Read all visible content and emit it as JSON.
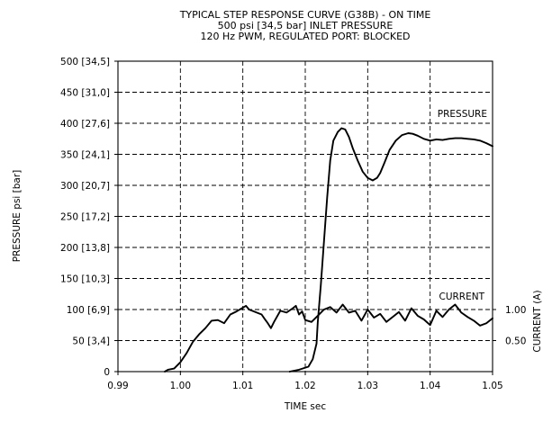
{
  "chart_data": {
    "type": "line",
    "title_lines": [
      "TYPICAL STEP RESPONSE CURVE (G38B) - ON TIME",
      "500 psi [34,5 bar] INLET PRESSURE",
      "120 Hz PWM, REGULATED PORT: BLOCKED"
    ],
    "xlabel": "TIME sec",
    "ylabel": "PRESSURE psi [bar]",
    "y2label": "CURRENT (A)",
    "xlim": [
      0.99,
      1.05
    ],
    "ylim": [
      0,
      500
    ],
    "x_ticks": [
      0.99,
      1.0,
      1.01,
      1.02,
      1.03,
      1.04,
      1.05
    ],
    "x_tick_labels": [
      "0.99",
      "1.00",
      "1.01",
      "1.02",
      "1.03",
      "1.04",
      "1.05"
    ],
    "y_ticks": [
      0,
      50,
      100,
      150,
      200,
      250,
      300,
      350,
      400,
      450,
      500
    ],
    "y_tick_labels": [
      "0",
      "50 [3,4]",
      "100 [6,9]",
      "150 [10,3]",
      "200 [13,8]",
      "250 [17,2]",
      "300 [20,7]",
      "350 [24,1]",
      "400 [27,6]",
      "450 [31,0]",
      "500 [34,5]"
    ],
    "y2_ticks": [
      {
        "label": "0.50",
        "value": 0.5,
        "y_equiv": 50
      },
      {
        "label": "1.00",
        "value": 1.0,
        "y_equiv": 100
      }
    ],
    "grid": true,
    "series": [
      {
        "name": "PRESSURE",
        "x": [
          1.0175,
          1.019,
          1.0205,
          1.0212,
          1.0218,
          1.022,
          1.0225,
          1.023,
          1.0235,
          1.024,
          1.0245,
          1.0252,
          1.0258,
          1.0264,
          1.027,
          1.0276,
          1.0284,
          1.0292,
          1.03,
          1.0308,
          1.0315,
          1.032,
          1.0327,
          1.0335,
          1.0345,
          1.0355,
          1.0365,
          1.0372,
          1.038,
          1.039,
          1.04,
          1.041,
          1.042,
          1.043,
          1.044,
          1.045,
          1.046,
          1.047,
          1.048,
          1.049,
          1.05
        ],
        "y": [
          0,
          3,
          8,
          20,
          45,
          80,
          140,
          210,
          280,
          340,
          372,
          386,
          392,
          390,
          378,
          360,
          340,
          322,
          312,
          308,
          312,
          320,
          337,
          357,
          372,
          381,
          384,
          383,
          380,
          375,
          372,
          374,
          373,
          375,
          376,
          376,
          375,
          374,
          372,
          368,
          363
        ]
      },
      {
        "name": "CURRENT",
        "x": [
          0.9975,
          0.998,
          0.999,
          1.0,
          1.001,
          1.002,
          1.003,
          1.004,
          1.005,
          1.006,
          1.007,
          1.008,
          1.009,
          1.01,
          1.0105,
          1.011,
          1.012,
          1.013,
          1.0135,
          1.014,
          1.0145,
          1.015,
          1.016,
          1.017,
          1.018,
          1.0185,
          1.019,
          1.0195,
          1.02,
          1.021,
          1.022,
          1.023,
          1.024,
          1.025,
          1.026,
          1.027,
          1.028,
          1.029,
          1.03,
          1.031,
          1.032,
          1.033,
          1.034,
          1.035,
          1.036,
          1.037,
          1.038,
          1.039,
          1.04,
          1.041,
          1.042,
          1.043,
          1.044,
          1.045,
          1.046,
          1.047,
          1.048,
          1.049,
          1.05
        ],
        "y": [
          0,
          3,
          5,
          15,
          30,
          48,
          60,
          70,
          82,
          83,
          78,
          92,
          97,
          103,
          106,
          100,
          96,
          92,
          85,
          78,
          70,
          80,
          98,
          95,
          102,
          106,
          92,
          97,
          83,
          80,
          90,
          100,
          104,
          95,
          108,
          95,
          98,
          82,
          100,
          87,
          93,
          80,
          88,
          96,
          82,
          102,
          90,
          84,
          75,
          98,
          88,
          100,
          108,
          95,
          88,
          82,
          74,
          78,
          86
        ]
      }
    ]
  }
}
